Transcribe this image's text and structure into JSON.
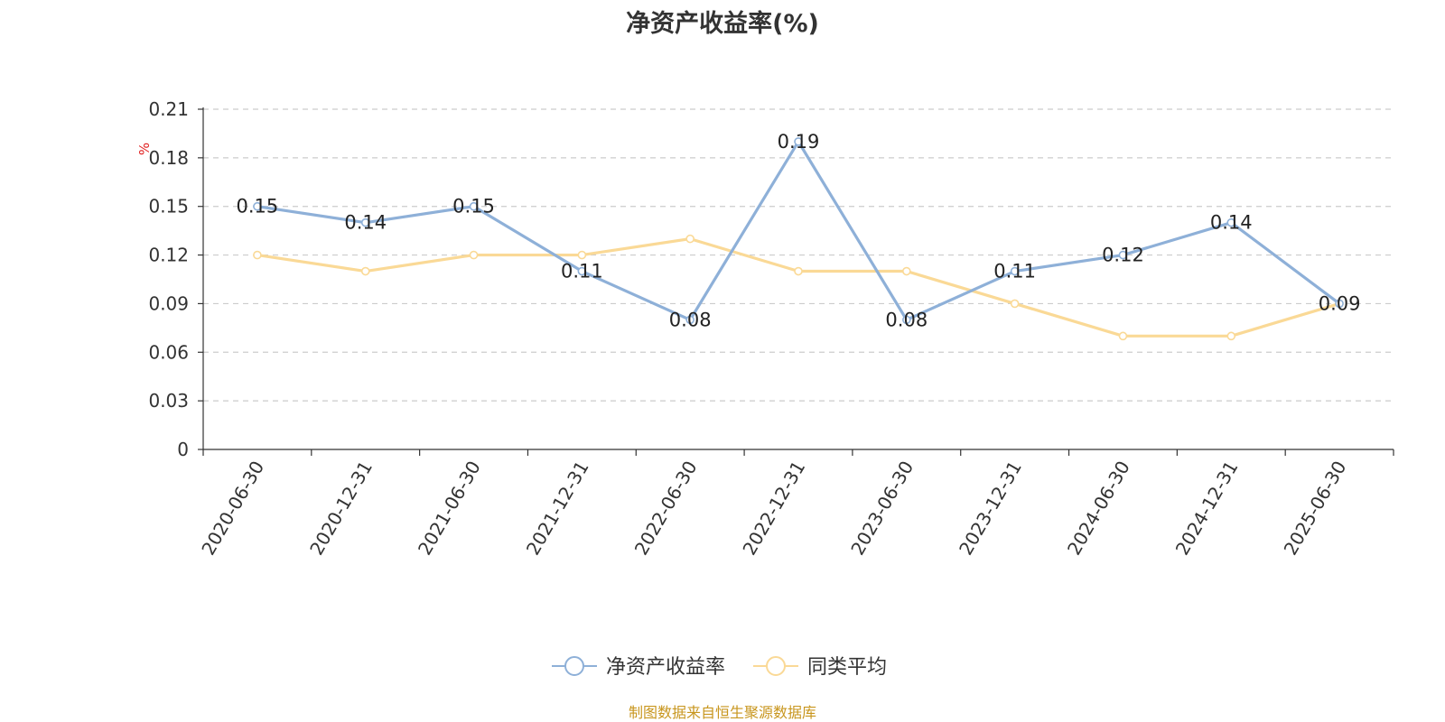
{
  "chart_data": {
    "type": "line",
    "title": "净资产收益率(%)",
    "ylabel": "%",
    "ylim": [
      0,
      0.21
    ],
    "yticks": [
      0,
      0.03,
      0.06,
      0.09,
      0.12,
      0.15,
      0.18,
      0.21
    ],
    "ytick_labels": [
      "0",
      "0.03",
      "0.06",
      "0.09",
      "0.12",
      "0.15",
      "0.18",
      "0.21"
    ],
    "grid": true,
    "legend_position": "bottom",
    "categories": [
      "2020-06-30",
      "2020-12-31",
      "2021-06-30",
      "2021-12-31",
      "2022-06-30",
      "2022-12-31",
      "2023-06-30",
      "2023-12-31",
      "2024-06-30",
      "2024-12-31",
      "2025-06-30"
    ],
    "series": [
      {
        "name": "净资产收益率",
        "color": "#8eb0d8",
        "values": [
          0.15,
          0.14,
          0.15,
          0.11,
          0.08,
          0.19,
          0.08,
          0.11,
          0.12,
          0.14,
          0.09
        ],
        "labels": [
          "0.15",
          "0.14",
          "0.15",
          "0.11",
          "0.08",
          "0.19",
          "0.08",
          "0.11",
          "0.12",
          "0.14",
          "0.09"
        ]
      },
      {
        "name": "同类平均",
        "color": "#fad996",
        "values": [
          0.12,
          0.11,
          0.12,
          0.12,
          0.13,
          0.11,
          0.11,
          0.09,
          0.07,
          0.07,
          0.09
        ]
      }
    ],
    "source": "制图数据来自恒生聚源数据库",
    "axis_label_color": "#e02020",
    "source_color": "#c8961e"
  }
}
